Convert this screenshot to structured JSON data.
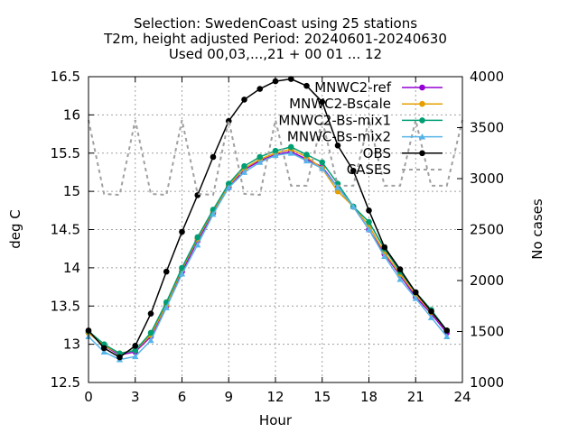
{
  "chart_data": {
    "type": "line",
    "title": [
      "Selection: SwedenCoast using    25 stations",
      "T2m, height adjusted   Period: 20240601-20240630",
      "Used 00,03,...,21 + 00 01 ... 12"
    ],
    "xlabel": "Hour",
    "ylabel": "deg C",
    "y2label": "No cases",
    "xlim": [
      0,
      24
    ],
    "ylim": [
      12.5,
      16.5
    ],
    "y2lim": [
      1000,
      4000
    ],
    "xticks": [
      "0",
      "3",
      "6",
      "9",
      "12",
      "15",
      "18",
      "21",
      "24"
    ],
    "yticks": [
      "12.5",
      "13",
      "13.5",
      "14",
      "14.5",
      "15",
      "15.5",
      "16",
      "16.5"
    ],
    "y2ticks": [
      "1000",
      "1500",
      "2000",
      "2500",
      "3000",
      "3500",
      "4000"
    ],
    "grid": true,
    "legend_position": "top-right",
    "x": [
      0,
      1,
      2,
      3,
      4,
      5,
      6,
      7,
      8,
      9,
      10,
      11,
      12,
      13,
      14,
      15,
      16,
      17,
      18,
      19,
      20,
      21,
      22,
      23,
      24
    ],
    "series": [
      {
        "name": "MNWC2-ref",
        "color": "#9400d3",
        "marker": "circle",
        "values": [
          13.15,
          12.98,
          12.86,
          12.9,
          13.1,
          13.5,
          13.95,
          14.35,
          14.72,
          15.05,
          15.28,
          15.4,
          15.48,
          15.52,
          15.42,
          15.32,
          15.05,
          14.8,
          14.5,
          14.18,
          13.9,
          13.62,
          13.4,
          13.15,
          null
        ]
      },
      {
        "name": "MNWC2-Bscale",
        "color": "#e69f00",
        "marker": "circle",
        "values": [
          13.15,
          12.98,
          12.88,
          12.92,
          13.12,
          13.52,
          13.98,
          14.38,
          14.74,
          15.08,
          15.3,
          15.42,
          15.5,
          15.55,
          15.45,
          15.3,
          15.0,
          14.8,
          14.55,
          14.2,
          13.92,
          13.65,
          13.42,
          13.18,
          null
        ]
      },
      {
        "name": "MNWC2-Bs-mix1",
        "color": "#009e73",
        "marker": "circle",
        "values": [
          13.17,
          13.0,
          12.88,
          12.92,
          13.15,
          13.55,
          14.0,
          14.4,
          14.76,
          15.1,
          15.33,
          15.45,
          15.53,
          15.58,
          15.48,
          15.38,
          15.1,
          14.8,
          14.6,
          14.25,
          13.95,
          13.68,
          13.45,
          13.18,
          null
        ]
      },
      {
        "name": "MNWC-Bs-mix2",
        "color": "#56b4e9",
        "marker": "triangle",
        "values": [
          13.1,
          12.9,
          12.8,
          12.84,
          13.05,
          13.48,
          13.92,
          14.3,
          14.7,
          15.05,
          15.25,
          15.38,
          15.47,
          15.5,
          15.4,
          15.3,
          15.05,
          14.8,
          14.5,
          14.15,
          13.85,
          13.6,
          13.35,
          13.1,
          null
        ]
      },
      {
        "name": "OBS",
        "color": "#000000",
        "marker": "circle",
        "values": [
          13.18,
          12.95,
          12.83,
          12.98,
          13.4,
          13.95,
          14.47,
          14.95,
          15.45,
          15.92,
          16.2,
          16.34,
          16.44,
          16.47,
          16.38,
          16.17,
          15.6,
          15.27,
          14.75,
          14.27,
          13.98,
          13.68,
          13.43,
          13.18,
          null
        ]
      },
      {
        "name": "CASES",
        "color": "#a0a0a0",
        "dash": true,
        "axis": "y2",
        "x": [
          0,
          1,
          2,
          3,
          4,
          5,
          6,
          7,
          8,
          9,
          10,
          11,
          12,
          13,
          14,
          15,
          16,
          17,
          18,
          19,
          20,
          21,
          22,
          23,
          24
        ],
        "values": [
          3575,
          2850,
          2840,
          3575,
          2850,
          2840,
          3575,
          2850,
          2840,
          3575,
          2850,
          2840,
          3575,
          2930,
          2930,
          3575,
          2930,
          2930,
          3575,
          2930,
          2930,
          3575,
          2930,
          2930,
          3575
        ]
      }
    ]
  }
}
